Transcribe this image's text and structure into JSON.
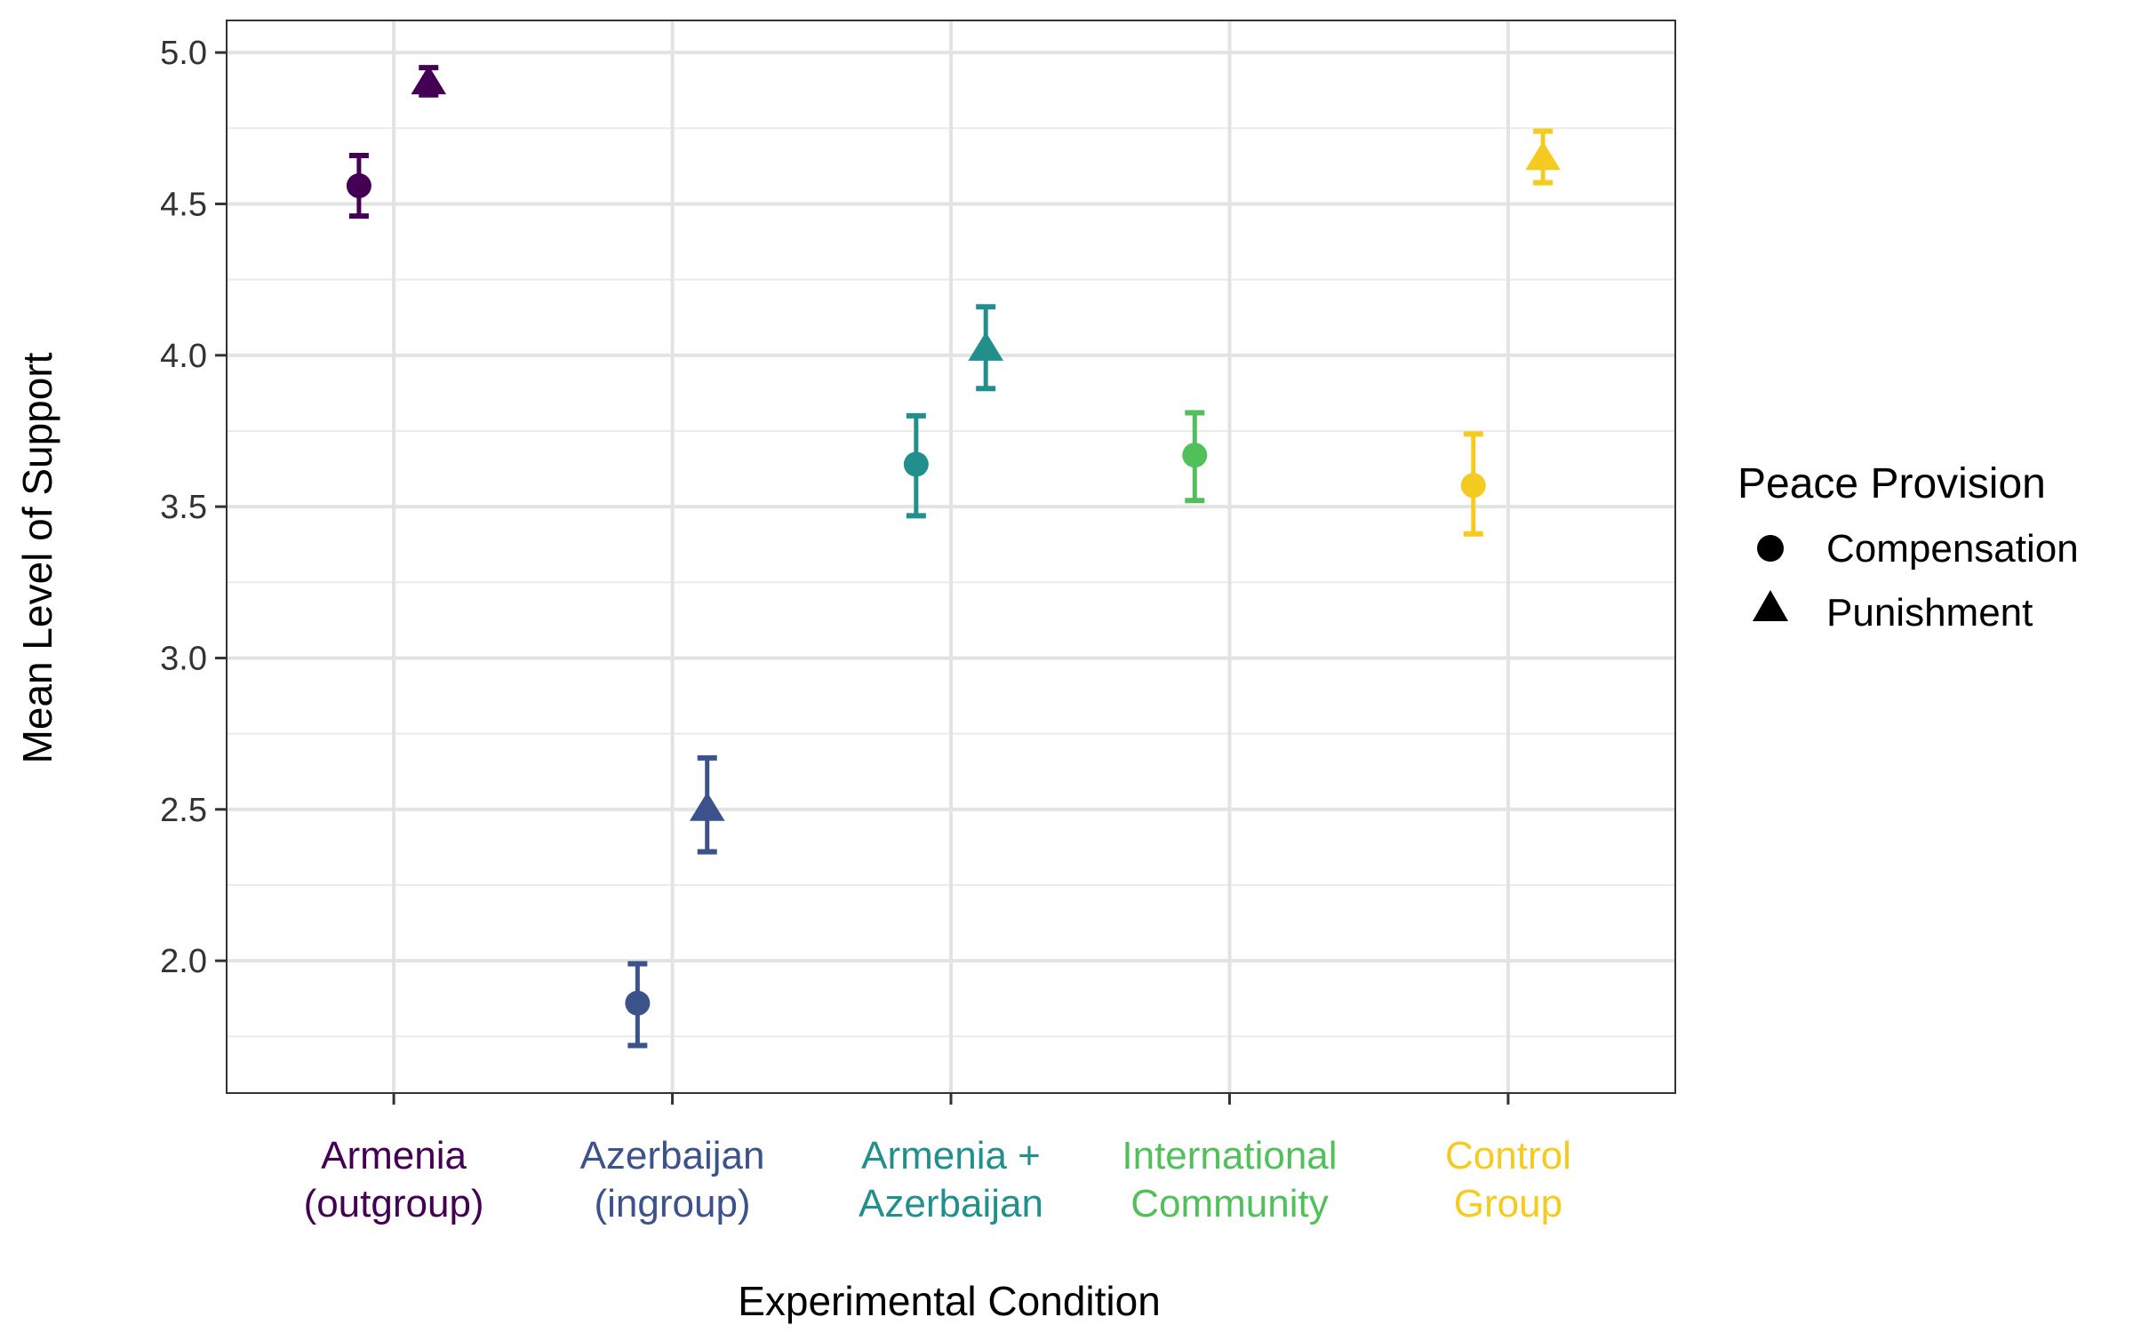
{
  "chart_data": {
    "type": "scatter",
    "subtype": "dodged point-range (mean with error bars)",
    "title": "",
    "xlabel": "Experimental Condition",
    "ylabel": "Mean Level of Support",
    "ylim": [
      1.56,
      5.1
    ],
    "yticks": [
      2.0,
      2.5,
      3.0,
      3.5,
      4.0,
      4.5,
      5.0
    ],
    "ytick_labels": [
      "2.0",
      "2.5",
      "3.0",
      "3.5",
      "4.0",
      "4.5",
      "5.0"
    ],
    "grid": true,
    "legend": {
      "title": "Peace Provision",
      "position": "right",
      "entries": [
        {
          "name": "Compensation",
          "shape": "circle"
        },
        {
          "name": "Punishment",
          "shape": "triangle"
        }
      ]
    },
    "categories": [
      {
        "lines": [
          "Armenia",
          "(outgroup)"
        ],
        "color": "#440154"
      },
      {
        "lines": [
          "Azerbaijan",
          "(ingroup)"
        ],
        "color": "#3B528B"
      },
      {
        "lines": [
          "Armenia +",
          "Azerbaijan"
        ],
        "color": "#21908C"
      },
      {
        "lines": [
          "International",
          "Community"
        ],
        "color": "#52C05A"
      },
      {
        "lines": [
          "Control",
          "Group"
        ],
        "color": "#F6CB1F"
      }
    ],
    "series": [
      {
        "name": "Compensation",
        "shape": "circle",
        "points": [
          {
            "category": 0,
            "mean": 4.56,
            "lower": 4.46,
            "upper": 4.66
          },
          {
            "category": 1,
            "mean": 1.86,
            "lower": 1.72,
            "upper": 1.99
          },
          {
            "category": 2,
            "mean": 3.64,
            "lower": 3.47,
            "upper": 3.8
          },
          {
            "category": 3,
            "mean": 3.67,
            "lower": 3.52,
            "upper": 3.81
          },
          {
            "category": 4,
            "mean": 3.57,
            "lower": 3.41,
            "upper": 3.74
          }
        ]
      },
      {
        "name": "Punishment",
        "shape": "triangle",
        "points": [
          {
            "category": 0,
            "mean": 4.91,
            "lower": 4.86,
            "upper": 4.95
          },
          {
            "category": 1,
            "mean": 2.51,
            "lower": 2.36,
            "upper": 2.67
          },
          {
            "category": 2,
            "mean": 4.03,
            "lower": 3.89,
            "upper": 4.16
          },
          {
            "category": 4,
            "mean": 4.66,
            "lower": 4.57,
            "upper": 4.74
          }
        ]
      }
    ]
  }
}
